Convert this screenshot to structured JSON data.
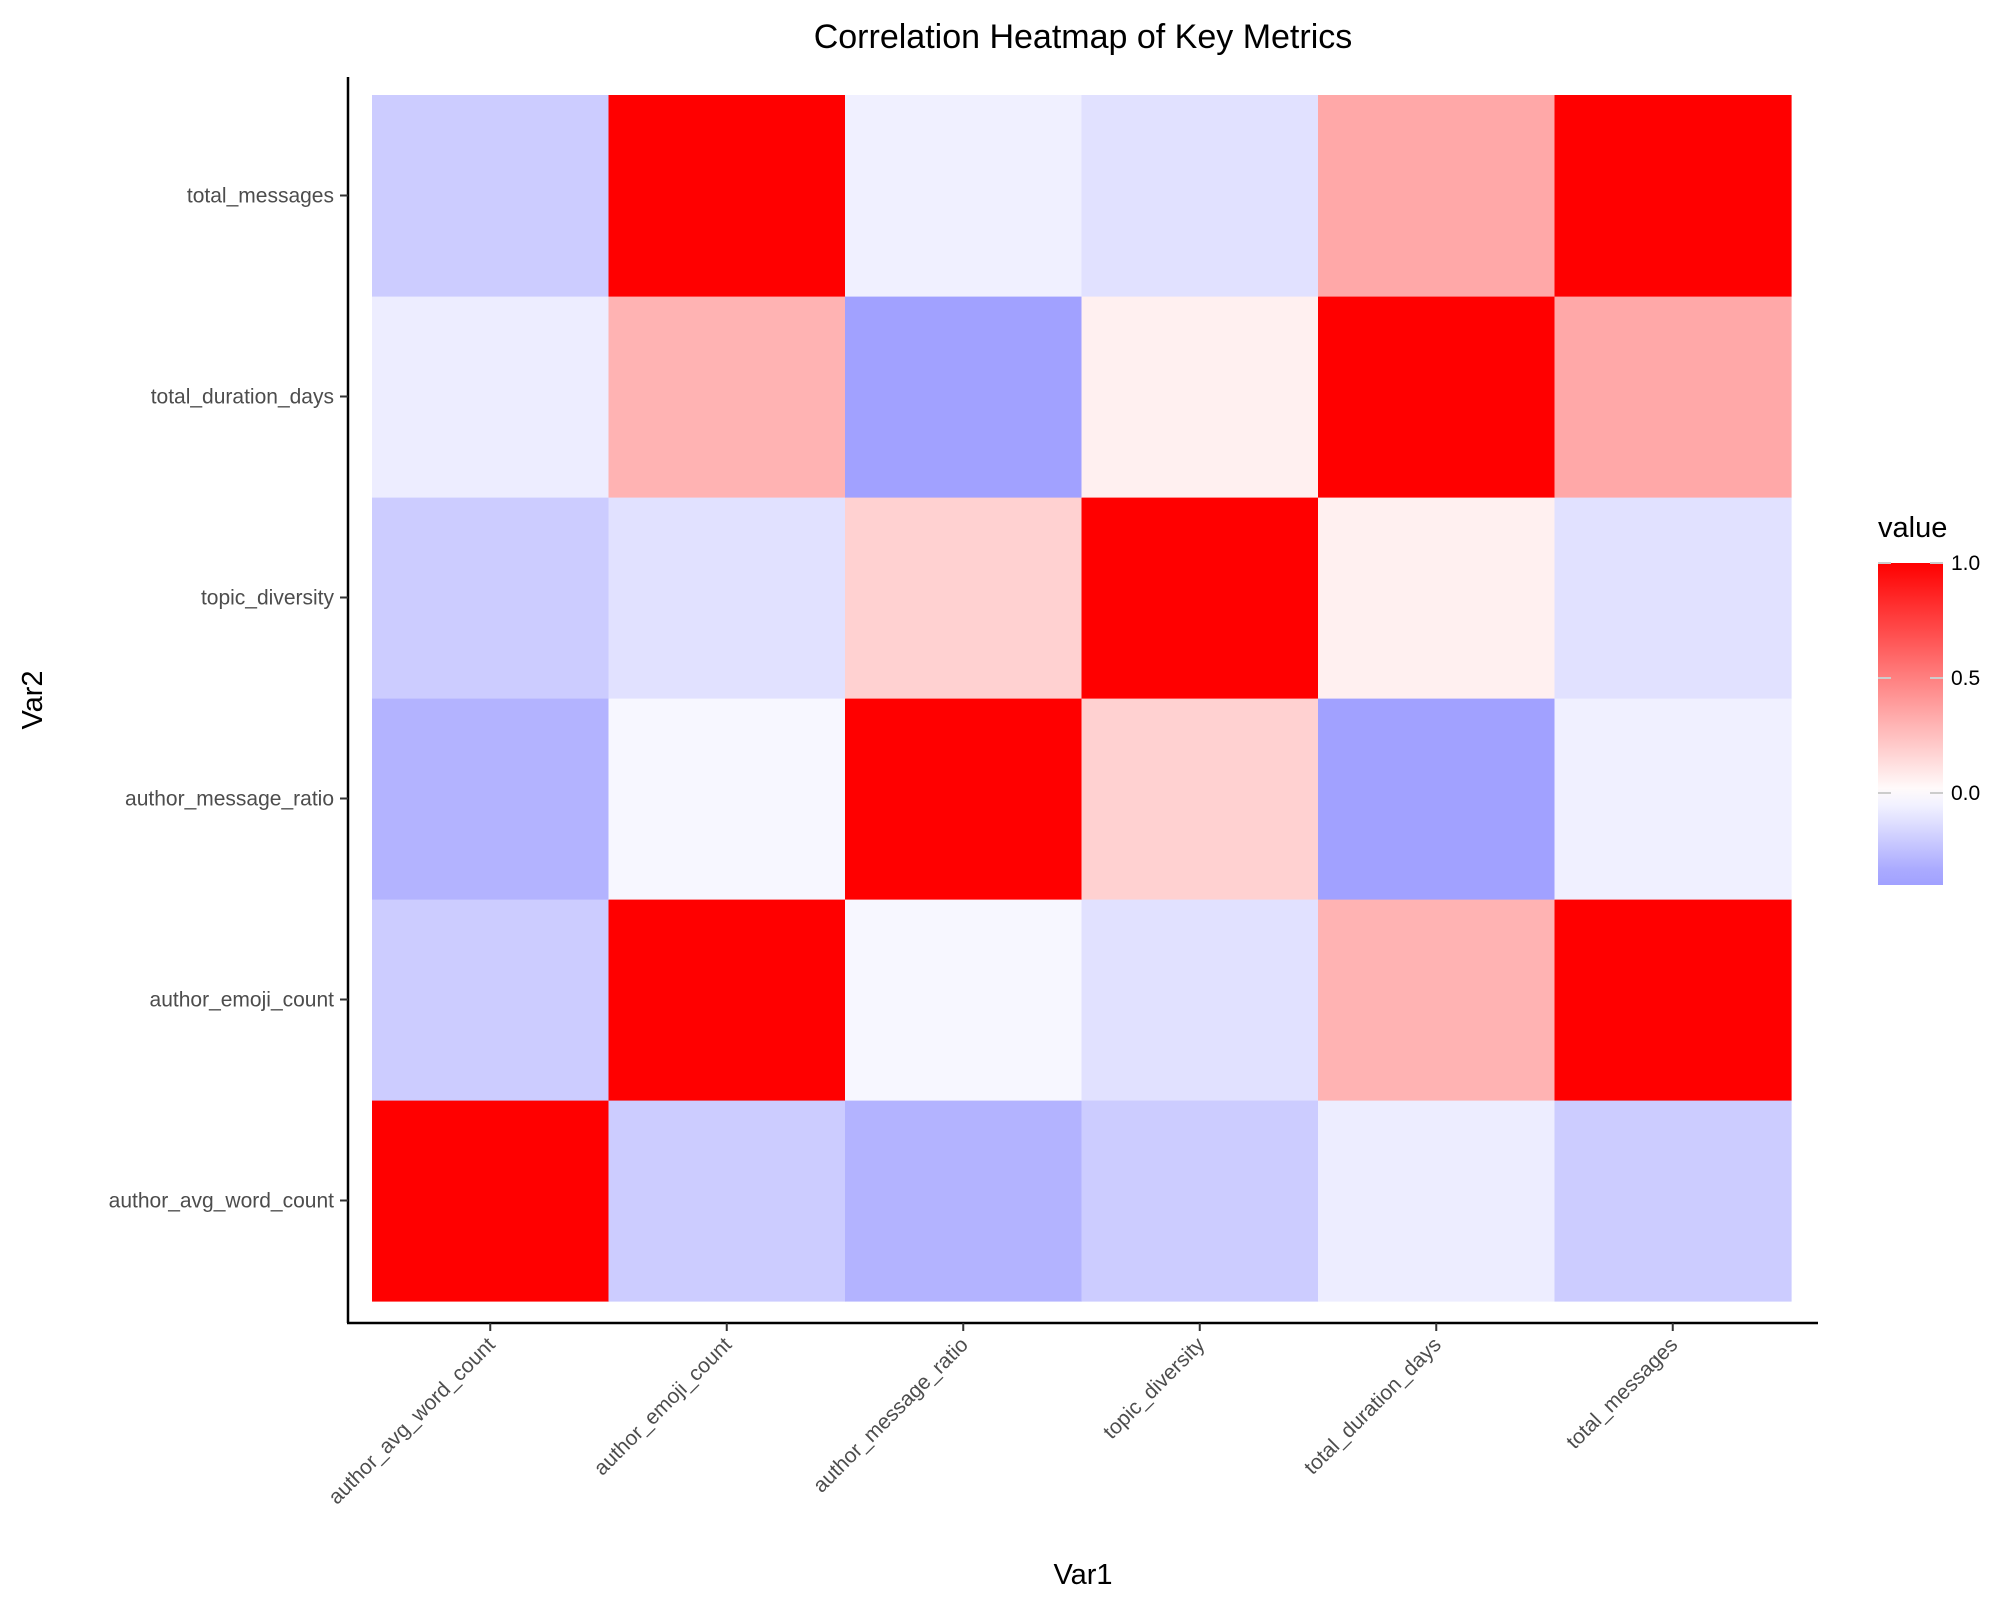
{
  "chart_data": {
    "type": "heatmap",
    "title": "Correlation Heatmap of Key Metrics",
    "xlabel": "Var1",
    "ylabel": "Var2",
    "x_categories": [
      "author_avg_word_count",
      "author_emoji_count",
      "author_message_ratio",
      "topic_diversity",
      "total_duration_days",
      "total_messages"
    ],
    "y_categories": [
      "author_avg_word_count",
      "author_emoji_count",
      "author_message_ratio",
      "topic_diversity",
      "total_duration_days",
      "total_messages"
    ],
    "values": [
      [
        1.0,
        -0.2,
        -0.3,
        -0.2,
        -0.07,
        -0.2
      ],
      [
        -0.2,
        1.0,
        -0.03,
        -0.12,
        0.3,
        1.0
      ],
      [
        -0.3,
        -0.03,
        1.0,
        0.18,
        -0.37,
        -0.06
      ],
      [
        -0.2,
        -0.12,
        0.18,
        1.0,
        0.06,
        -0.12
      ],
      [
        -0.07,
        0.3,
        -0.37,
        0.06,
        1.0,
        0.34
      ],
      [
        -0.2,
        1.0,
        -0.06,
        -0.12,
        0.34,
        1.0
      ]
    ],
    "grid": false,
    "legend": {
      "title": "value",
      "position": "right",
      "ticks": [
        0.0,
        0.5,
        1.0
      ],
      "tick_labels": [
        "0.0",
        "0.5",
        "1.0"
      ],
      "range": [
        -0.4,
        1.0
      ]
    },
    "colors": {
      "low": "#a1a1ff",
      "mid": "#ffffff",
      "high": "#ff0000",
      "low_limit_value": -0.37
    }
  }
}
